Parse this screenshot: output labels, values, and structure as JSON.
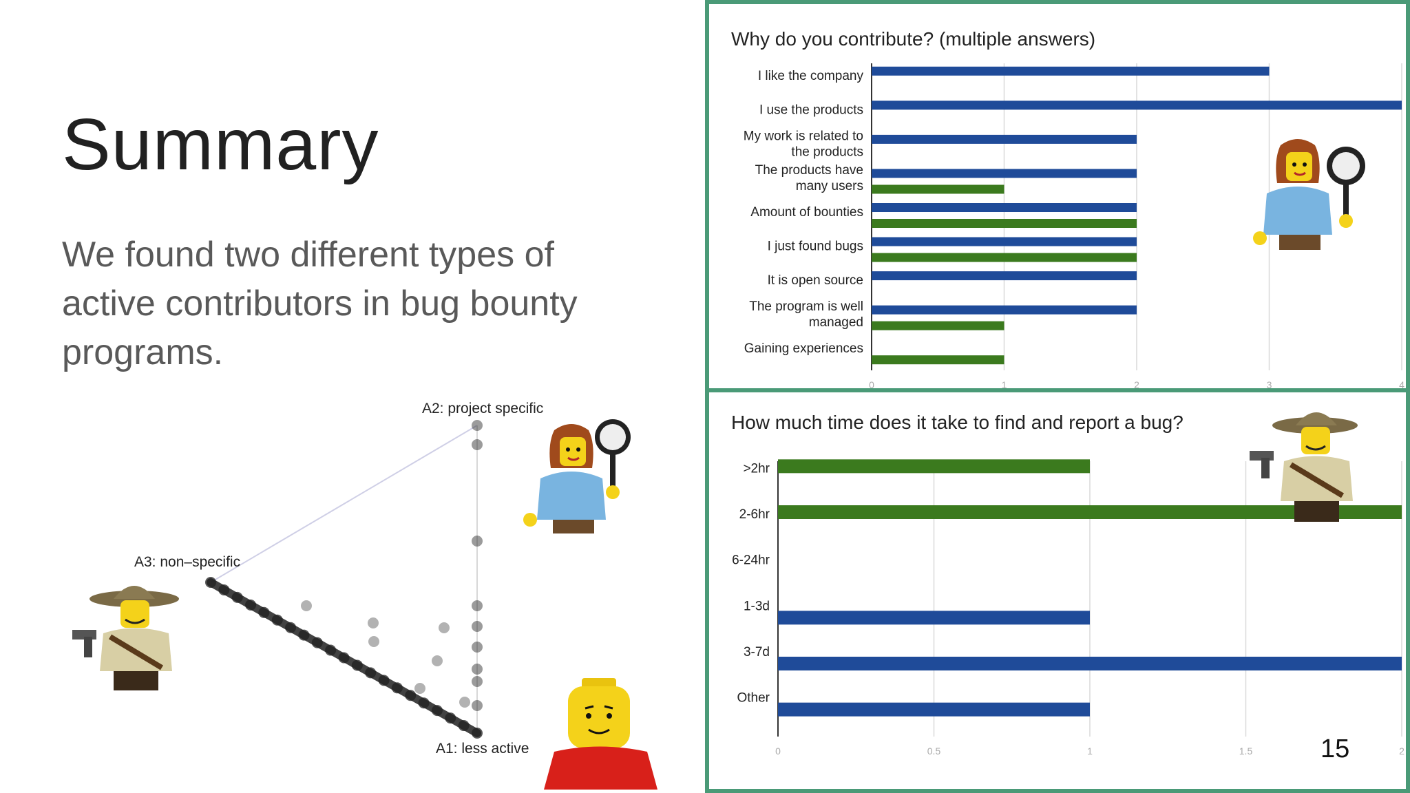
{
  "slide": {
    "title": "Summary",
    "body": "We found two different types of active contributors in bug bounty programs.",
    "page_number": "15"
  },
  "triangle": {
    "label_a1": "A1: less active",
    "label_a2": "A2: project specific",
    "label_a3": "A3: non–specific"
  },
  "colors": {
    "blue": "#1f4b99",
    "green": "#3b7a1e",
    "border": "#4a9a77",
    "grid": "#d9d9d9"
  },
  "chart_data": [
    {
      "type": "bar",
      "orientation": "horizontal",
      "title": "Why do you contribute? (multiple answers)",
      "categories": [
        [
          "I like the company"
        ],
        [
          "I use the products"
        ],
        [
          "My work is related to",
          "the products"
        ],
        [
          "The products have",
          "many users"
        ],
        [
          "Amount of bounties"
        ],
        [
          "I just found bugs"
        ],
        [
          "It is open source"
        ],
        [
          "The program is well",
          "managed"
        ],
        [
          "Gaining experiences"
        ]
      ],
      "series": [
        {
          "color": "#1f4b99",
          "values": [
            3,
            4,
            2,
            2,
            2,
            2,
            2,
            2,
            0
          ]
        },
        {
          "color": "#3b7a1e",
          "values": [
            0,
            0,
            0,
            1,
            2,
            2,
            0,
            1,
            1
          ]
        }
      ],
      "xlim": [
        0,
        4
      ],
      "xticks": [
        "0",
        "1",
        "2",
        "3",
        "4"
      ],
      "grid": true
    },
    {
      "type": "bar",
      "orientation": "horizontal",
      "title": "How much time does it take to find and report a bug?",
      "categories": [
        ">2hr",
        "2-6hr",
        "6-24hr",
        "1-3d",
        "3-7d",
        "Other"
      ],
      "series": [
        {
          "color": "#3b7a1e",
          "values": [
            1,
            2,
            0,
            0,
            0,
            0
          ]
        },
        {
          "color": "#1f4b99",
          "values": [
            0,
            0,
            0,
            1,
            2,
            1
          ]
        }
      ],
      "xlim": [
        0,
        2
      ],
      "xticks": [
        "0",
        "0.5",
        "1",
        "1.5",
        "2"
      ],
      "grid": true
    }
  ]
}
